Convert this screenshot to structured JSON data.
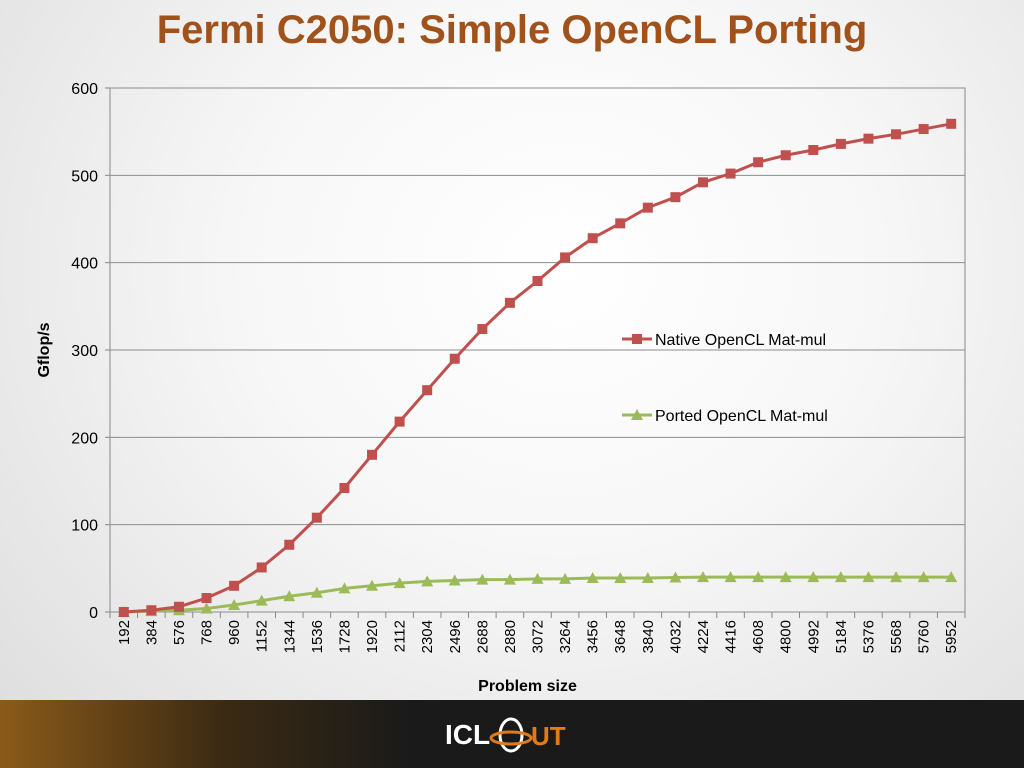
{
  "slide": {
    "title": "Fermi C2050: Simple OpenCL Porting",
    "logo_text": "ICL",
    "colors": {
      "title": "#a0521a",
      "native": "#c0504d",
      "ported": "#9bbb59"
    }
  },
  "chart_data": {
    "type": "line",
    "title": "",
    "xlabel": "Problem size",
    "ylabel": "Gflop/s",
    "ylim": [
      0,
      600
    ],
    "yticks": [
      0,
      100,
      200,
      300,
      400,
      500,
      600
    ],
    "grid": true,
    "legend_position": "right",
    "categories": [
      "192",
      "384",
      "576",
      "768",
      "960",
      "1152",
      "1344",
      "1536",
      "1728",
      "1920",
      "2112",
      "2304",
      "2496",
      "2688",
      "2880",
      "3072",
      "3264",
      "3456",
      "3648",
      "3840",
      "4032",
      "4224",
      "4416",
      "4608",
      "4800",
      "4992",
      "5184",
      "5376",
      "5568",
      "5760",
      "5952"
    ],
    "series": [
      {
        "name": "Native OpenCL Mat-mul",
        "color": "#c0504d",
        "marker": "square",
        "values": [
          0,
          2,
          6,
          16,
          30,
          51,
          77,
          108,
          142,
          180,
          218,
          254,
          290,
          324,
          354,
          379,
          406,
          428,
          445,
          463,
          475,
          492,
          502,
          515,
          523,
          529,
          536,
          542,
          547,
          553,
          559
        ]
      },
      {
        "name": "Ported OpenCL Mat-mul",
        "color": "#9bbb59",
        "marker": "triangle",
        "values": [
          0,
          1,
          2,
          4,
          8,
          13,
          18,
          22,
          27,
          30,
          33,
          35,
          36,
          37,
          37,
          38,
          38,
          39,
          39,
          39,
          39.5,
          40,
          40,
          40,
          40,
          40,
          40,
          40,
          40,
          40,
          40
        ]
      }
    ]
  }
}
